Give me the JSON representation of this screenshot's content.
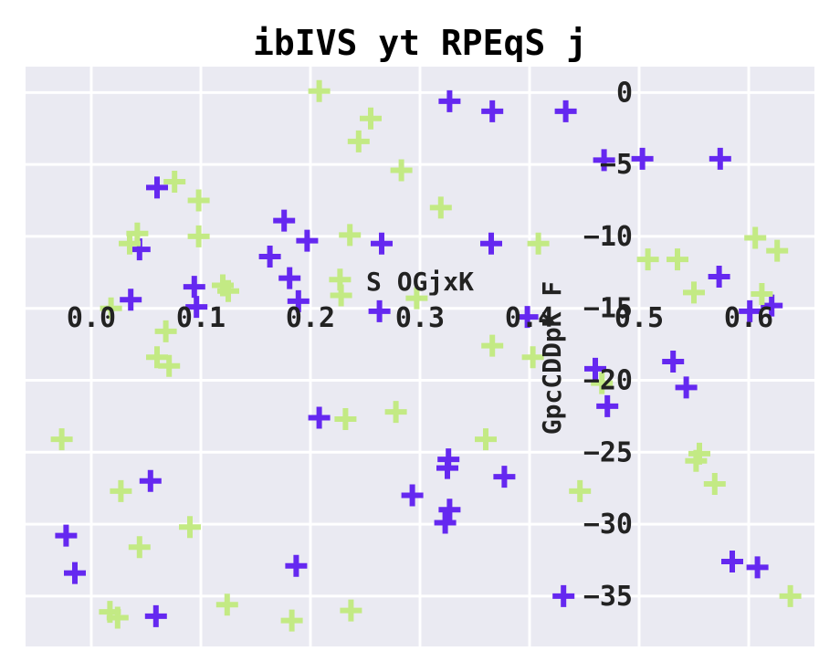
{
  "chart_data": {
    "type": "scatter",
    "title": "ibIVS yt RPEqS j",
    "xlabel": "S OGjxK",
    "ylabel": "GpcCDDpK F",
    "xlim": [
      -0.06,
      0.66
    ],
    "ylim": [
      -38.5,
      1.8
    ],
    "x_ticks": [
      0.0,
      0.1,
      0.2,
      0.3,
      0.4,
      0.5,
      0.6
    ],
    "x_tick_labels": [
      "0.0",
      "0.1",
      "0.2",
      "0.3",
      "0.4",
      "0.5",
      "0.6"
    ],
    "y_ticks": [
      0,
      -5,
      -10,
      -15,
      -20,
      -25,
      -30,
      -35
    ],
    "y_tick_labels": [
      "0",
      "−5",
      "−10",
      "−15",
      "−20",
      "−25",
      "−30",
      "−35"
    ],
    "grid": true,
    "background_color": "#EAEAF2",
    "marker": "plus",
    "series": [
      {
        "color": "#6528F0",
        "points": [
          {
            "x": -0.023,
            "y": -30.8
          },
          {
            "x": -0.015,
            "y": -33.4
          },
          {
            "x": 0.036,
            "y": -14.4
          },
          {
            "x": 0.044,
            "y": -10.9
          },
          {
            "x": 0.054,
            "y": -27.0
          },
          {
            "x": 0.06,
            "y": -6.6
          },
          {
            "x": 0.059,
            "y": -36.4
          },
          {
            "x": 0.094,
            "y": -13.5
          },
          {
            "x": 0.096,
            "y": -14.9
          },
          {
            "x": 0.176,
            "y": -8.9
          },
          {
            "x": 0.163,
            "y": -11.4
          },
          {
            "x": 0.181,
            "y": -12.9
          },
          {
            "x": 0.189,
            "y": -14.5
          },
          {
            "x": 0.187,
            "y": -32.9
          },
          {
            "x": 0.197,
            "y": -10.3
          },
          {
            "x": 0.208,
            "y": -22.6
          },
          {
            "x": 0.263,
            "y": -15.2
          },
          {
            "x": 0.265,
            "y": -10.5
          },
          {
            "x": 0.327,
            "y": -0.6
          },
          {
            "x": 0.366,
            "y": -1.3
          },
          {
            "x": 0.365,
            "y": -10.5
          },
          {
            "x": 0.377,
            "y": -26.7
          },
          {
            "x": 0.293,
            "y": -28.0
          },
          {
            "x": 0.326,
            "y": -25.5
          },
          {
            "x": 0.325,
            "y": -26.1
          },
          {
            "x": 0.327,
            "y": -29.0
          },
          {
            "x": 0.323,
            "y": -29.9
          },
          {
            "x": 0.433,
            "y": -1.3
          },
          {
            "x": 0.468,
            "y": -4.7
          },
          {
            "x": 0.398,
            "y": -15.6
          },
          {
            "x": 0.46,
            "y": -19.2
          },
          {
            "x": 0.471,
            "y": -21.8
          },
          {
            "x": 0.431,
            "y": -35.0
          },
          {
            "x": 0.503,
            "y": -4.6
          },
          {
            "x": 0.574,
            "y": -4.6
          },
          {
            "x": 0.573,
            "y": -12.8
          },
          {
            "x": 0.531,
            "y": -18.7
          },
          {
            "x": 0.543,
            "y": -20.5
          },
          {
            "x": 0.585,
            "y": -32.6
          },
          {
            "x": 0.601,
            "y": -15.2
          },
          {
            "x": 0.608,
            "y": -33.0
          },
          {
            "x": 0.621,
            "y": -14.8
          }
        ]
      },
      {
        "color": "#C3EA84",
        "points": [
          {
            "x": -0.027,
            "y": -24.1
          },
          {
            "x": 0.018,
            "y": -15.0
          },
          {
            "x": 0.017,
            "y": -36.1
          },
          {
            "x": 0.024,
            "y": -36.5
          },
          {
            "x": 0.027,
            "y": -27.7
          },
          {
            "x": 0.035,
            "y": -10.5
          },
          {
            "x": 0.042,
            "y": -9.8
          },
          {
            "x": 0.044,
            "y": -31.6
          },
          {
            "x": 0.06,
            "y": -18.4
          },
          {
            "x": 0.068,
            "y": -16.6
          },
          {
            "x": 0.071,
            "y": -19.0
          },
          {
            "x": 0.076,
            "y": -6.2
          },
          {
            "x": 0.09,
            "y": -30.2
          },
          {
            "x": 0.098,
            "y": -7.5
          },
          {
            "x": 0.098,
            "y": -10.0
          },
          {
            "x": 0.12,
            "y": -13.4
          },
          {
            "x": 0.125,
            "y": -13.8
          },
          {
            "x": 0.124,
            "y": -35.6
          },
          {
            "x": 0.183,
            "y": -36.7
          },
          {
            "x": 0.208,
            "y": 0.1
          },
          {
            "x": 0.227,
            "y": -13.0
          },
          {
            "x": 0.228,
            "y": -14.1
          },
          {
            "x": 0.232,
            "y": -22.7
          },
          {
            "x": 0.236,
            "y": -9.9
          },
          {
            "x": 0.237,
            "y": -36.0
          },
          {
            "x": 0.244,
            "y": -3.4
          },
          {
            "x": 0.255,
            "y": -1.8
          },
          {
            "x": 0.278,
            "y": -22.2
          },
          {
            "x": 0.283,
            "y": -5.4
          },
          {
            "x": 0.297,
            "y": -14.3
          },
          {
            "x": 0.319,
            "y": -8.0
          },
          {
            "x": 0.36,
            "y": -24.1
          },
          {
            "x": 0.366,
            "y": -17.6
          },
          {
            "x": 0.408,
            "y": -10.5
          },
          {
            "x": 0.403,
            "y": -18.4
          },
          {
            "x": 0.446,
            "y": -27.7
          },
          {
            "x": 0.466,
            "y": -20.2
          },
          {
            "x": 0.508,
            "y": -11.6
          },
          {
            "x": 0.535,
            "y": -11.6
          },
          {
            "x": 0.55,
            "y": -13.9
          },
          {
            "x": 0.555,
            "y": -25.1
          },
          {
            "x": 0.552,
            "y": -25.6
          },
          {
            "x": 0.569,
            "y": -27.2
          },
          {
            "x": 0.606,
            "y": -10.1
          },
          {
            "x": 0.612,
            "y": -14.0
          },
          {
            "x": 0.626,
            "y": -11.0
          },
          {
            "x": 0.638,
            "y": -35.0
          }
        ]
      }
    ]
  }
}
